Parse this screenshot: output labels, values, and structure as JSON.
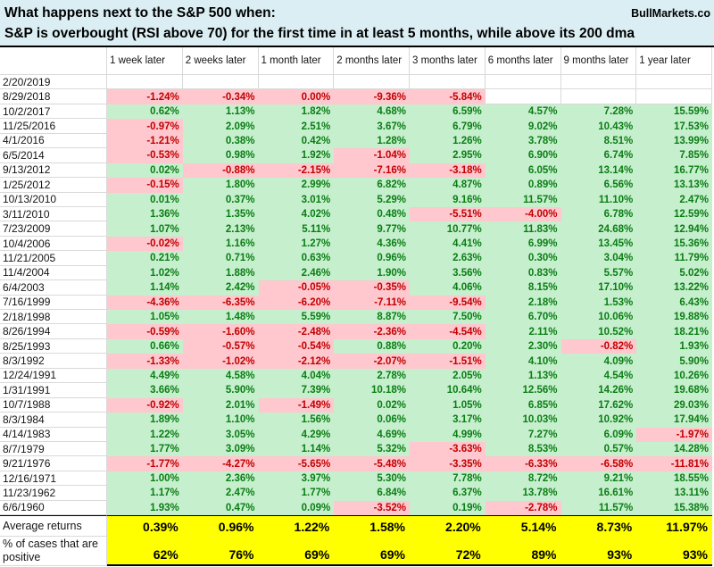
{
  "header": {
    "title_line1": "What happens next to the S&P 500 when:",
    "title_line2": "S&P is overbought (RSI above 70) for the first time in at least 5 months, while above its 200 dma",
    "brand": "BullMarkets.co"
  },
  "colors": {
    "header_bg": "#daeef3",
    "positive_bg": "#c6efce",
    "positive_text": "#0b7d14",
    "negative_bg": "#ffc7ce",
    "negative_text": "#c00000",
    "summary_bg": "#ffff00",
    "grid_line": "#d9d9d9"
  },
  "chart_data": {
    "type": "table",
    "title": "What happens next to the S&P 500 when:",
    "subtitle": "S&P is overbought (RSI above 70) for the first time in at least 5 months, while above its 200 dma",
    "columns": [
      "1 week later",
      "2 weeks later",
      "1 month later",
      "2 months later",
      "3 months later",
      "6 months later",
      "9 months later",
      "1 year later"
    ],
    "rows": [
      {
        "date": "2/20/2019",
        "values": [
          "",
          "",
          "",
          "",
          "",
          "",
          "",
          ""
        ]
      },
      {
        "date": "8/29/2018",
        "values": [
          "-1.24%",
          "-0.34%",
          "0.00%",
          "-9.36%",
          "-5.84%",
          "",
          "",
          ""
        ],
        "neg_override": [
          2
        ]
      },
      {
        "date": "10/2/2017",
        "values": [
          "0.62%",
          "1.13%",
          "1.82%",
          "4.68%",
          "6.59%",
          "4.57%",
          "7.28%",
          "15.59%"
        ]
      },
      {
        "date": "11/25/2016",
        "values": [
          "-0.97%",
          "2.09%",
          "2.51%",
          "3.67%",
          "6.79%",
          "9.02%",
          "10.43%",
          "17.53%"
        ]
      },
      {
        "date": "4/1/2016",
        "values": [
          "-1.21%",
          "0.38%",
          "0.42%",
          "1.28%",
          "1.26%",
          "3.78%",
          "8.51%",
          "13.99%"
        ]
      },
      {
        "date": "6/5/2014",
        "values": [
          "-0.53%",
          "0.98%",
          "1.92%",
          "-1.04%",
          "2.95%",
          "6.90%",
          "6.74%",
          "7.85%"
        ]
      },
      {
        "date": "9/13/2012",
        "values": [
          "0.02%",
          "-0.88%",
          "-2.15%",
          "-7.16%",
          "-3.18%",
          "6.05%",
          "13.14%",
          "16.77%"
        ]
      },
      {
        "date": "1/25/2012",
        "values": [
          "-0.15%",
          "1.80%",
          "2.99%",
          "6.82%",
          "4.87%",
          "0.89%",
          "6.56%",
          "13.13%"
        ]
      },
      {
        "date": "10/13/2010",
        "values": [
          "0.01%",
          "0.37%",
          "3.01%",
          "5.29%",
          "9.16%",
          "11.57%",
          "11.10%",
          "2.47%"
        ]
      },
      {
        "date": "3/11/2010",
        "values": [
          "1.36%",
          "1.35%",
          "4.02%",
          "0.48%",
          "-5.51%",
          "-4.00%",
          "6.78%",
          "12.59%"
        ]
      },
      {
        "date": "7/23/2009",
        "values": [
          "1.07%",
          "2.13%",
          "5.11%",
          "9.77%",
          "10.77%",
          "11.83%",
          "24.68%",
          "12.94%"
        ]
      },
      {
        "date": "10/4/2006",
        "values": [
          "-0.02%",
          "1.16%",
          "1.27%",
          "4.36%",
          "4.41%",
          "6.99%",
          "13.45%",
          "15.36%"
        ]
      },
      {
        "date": "11/21/2005",
        "values": [
          "0.21%",
          "0.71%",
          "0.63%",
          "0.96%",
          "2.63%",
          "0.30%",
          "3.04%",
          "11.79%"
        ]
      },
      {
        "date": "11/4/2004",
        "values": [
          "1.02%",
          "1.88%",
          "2.46%",
          "1.90%",
          "3.56%",
          "0.83%",
          "5.57%",
          "5.02%"
        ]
      },
      {
        "date": "6/4/2003",
        "values": [
          "1.14%",
          "2.42%",
          "-0.05%",
          "-0.35%",
          "4.06%",
          "8.15%",
          "17.10%",
          "13.22%"
        ]
      },
      {
        "date": "7/16/1999",
        "values": [
          "-4.36%",
          "-6.35%",
          "-6.20%",
          "-7.11%",
          "-9.54%",
          "2.18%",
          "1.53%",
          "6.43%"
        ]
      },
      {
        "date": "2/18/1998",
        "values": [
          "1.05%",
          "1.48%",
          "5.59%",
          "8.87%",
          "7.50%",
          "6.70%",
          "10.06%",
          "19.88%"
        ]
      },
      {
        "date": "8/26/1994",
        "values": [
          "-0.59%",
          "-1.60%",
          "-2.48%",
          "-2.36%",
          "-4.54%",
          "2.11%",
          "10.52%",
          "18.21%"
        ]
      },
      {
        "date": "8/25/1993",
        "values": [
          "0.66%",
          "-0.57%",
          "-0.54%",
          "0.88%",
          "0.20%",
          "2.30%",
          "-0.82%",
          "1.93%"
        ]
      },
      {
        "date": "8/3/1992",
        "values": [
          "-1.33%",
          "-1.02%",
          "-2.12%",
          "-2.07%",
          "-1.51%",
          "4.10%",
          "4.09%",
          "5.90%"
        ]
      },
      {
        "date": "12/24/1991",
        "values": [
          "4.49%",
          "4.58%",
          "4.04%",
          "2.78%",
          "2.05%",
          "1.13%",
          "4.54%",
          "10.26%"
        ]
      },
      {
        "date": "1/31/1991",
        "values": [
          "3.66%",
          "5.90%",
          "7.39%",
          "10.18%",
          "10.64%",
          "12.56%",
          "14.26%",
          "19.68%"
        ]
      },
      {
        "date": "10/7/1988",
        "values": [
          "-0.92%",
          "2.01%",
          "-1.49%",
          "0.02%",
          "1.05%",
          "6.85%",
          "17.62%",
          "29.03%"
        ]
      },
      {
        "date": "8/3/1984",
        "values": [
          "1.89%",
          "1.10%",
          "1.56%",
          "0.06%",
          "3.17%",
          "10.03%",
          "10.92%",
          "17.94%"
        ]
      },
      {
        "date": "4/14/1983",
        "values": [
          "1.22%",
          "3.05%",
          "4.29%",
          "4.69%",
          "4.99%",
          "7.27%",
          "6.09%",
          "-1.97%"
        ]
      },
      {
        "date": "8/7/1979",
        "values": [
          "1.77%",
          "3.09%",
          "1.14%",
          "5.32%",
          "-3.63%",
          "8.53%",
          "0.57%",
          "14.28%"
        ]
      },
      {
        "date": "9/21/1976",
        "values": [
          "-1.77%",
          "-4.27%",
          "-5.65%",
          "-5.48%",
          "-3.35%",
          "-6.33%",
          "-6.58%",
          "-11.81%"
        ]
      },
      {
        "date": "12/16/1971",
        "values": [
          "1.00%",
          "2.36%",
          "3.97%",
          "5.30%",
          "7.78%",
          "8.72%",
          "9.21%",
          "18.55%"
        ]
      },
      {
        "date": "11/23/1962",
        "values": [
          "1.17%",
          "2.47%",
          "1.77%",
          "6.84%",
          "6.37%",
          "13.78%",
          "16.61%",
          "13.11%"
        ]
      },
      {
        "date": "6/6/1960",
        "values": [
          "1.93%",
          "0.47%",
          "0.09%",
          "-3.52%",
          "0.19%",
          "-2.78%",
          "11.57%",
          "15.38%"
        ]
      }
    ],
    "summary": {
      "average_label": "Average returns",
      "average_values": [
        "0.39%",
        "0.96%",
        "1.22%",
        "1.58%",
        "2.20%",
        "5.14%",
        "8.73%",
        "11.97%"
      ],
      "percent_positive_label": "% of cases that are positive",
      "percent_positive_values": [
        "62%",
        "76%",
        "69%",
        "69%",
        "72%",
        "89%",
        "93%",
        "93%"
      ]
    }
  }
}
